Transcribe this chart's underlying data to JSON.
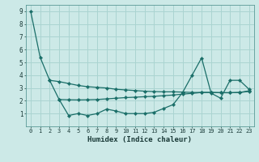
{
  "xlabel": "Humidex (Indice chaleur)",
  "background_color": "#cce9e7",
  "grid_color": "#aad4d1",
  "line_color": "#1a6e68",
  "xlim": [
    -0.5,
    23.5
  ],
  "ylim": [
    0.0,
    9.5
  ],
  "yticks": [
    1,
    2,
    3,
    4,
    5,
    6,
    7,
    8,
    9
  ],
  "xticks": [
    0,
    1,
    2,
    3,
    4,
    5,
    6,
    7,
    8,
    9,
    10,
    11,
    12,
    13,
    14,
    15,
    16,
    17,
    18,
    19,
    20,
    21,
    22,
    23
  ],
  "series1": {
    "x": [
      0,
      1,
      2,
      3,
      4,
      5,
      6,
      7,
      8,
      9,
      10,
      11,
      12,
      13,
      14,
      15,
      16,
      17,
      18,
      19,
      20,
      21,
      22,
      23
    ],
    "y": [
      9.0,
      5.4,
      3.6,
      2.1,
      0.85,
      1.0,
      0.85,
      1.0,
      1.35,
      1.2,
      1.0,
      1.0,
      1.0,
      1.1,
      1.4,
      1.7,
      2.65,
      4.0,
      5.35,
      2.6,
      2.2,
      3.6,
      3.6,
      2.9
    ]
  },
  "series2": {
    "x": [
      2,
      3,
      4,
      5,
      6,
      7,
      8,
      9,
      10,
      11,
      12,
      13,
      14,
      15,
      16,
      17,
      18,
      19,
      20,
      21,
      22,
      23
    ],
    "y": [
      3.6,
      3.5,
      3.35,
      3.2,
      3.1,
      3.05,
      3.0,
      2.9,
      2.85,
      2.8,
      2.75,
      2.72,
      2.7,
      2.7,
      2.68,
      2.65,
      2.65,
      2.65,
      2.63,
      2.63,
      2.65,
      2.78
    ]
  },
  "series3": {
    "x": [
      3,
      4,
      5,
      6,
      7,
      8,
      9,
      10,
      11,
      12,
      13,
      14,
      15,
      16,
      17,
      18,
      19,
      20,
      21,
      22,
      23
    ],
    "y": [
      2.1,
      2.08,
      2.07,
      2.08,
      2.1,
      2.15,
      2.2,
      2.25,
      2.28,
      2.32,
      2.35,
      2.4,
      2.45,
      2.52,
      2.58,
      2.65,
      2.65,
      2.64,
      2.63,
      2.65,
      2.73
    ]
  }
}
